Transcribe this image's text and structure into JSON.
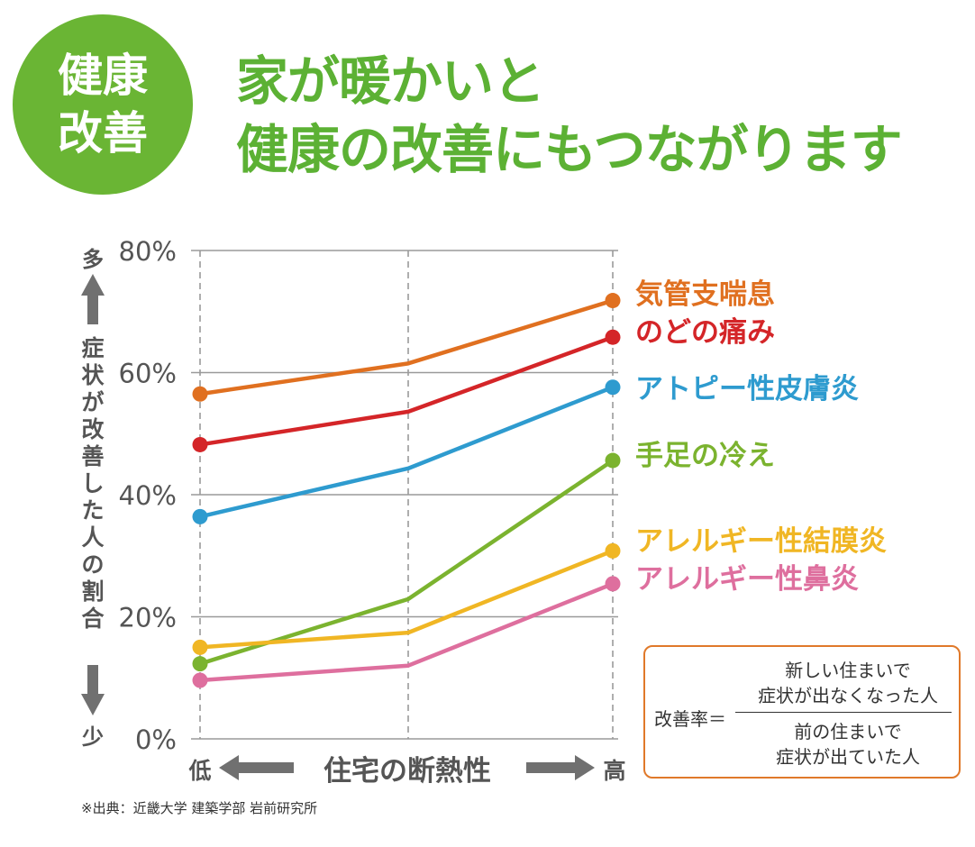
{
  "badge": {
    "line1": "健康",
    "line2": "改善"
  },
  "headline": {
    "line1": "家が暖かいと",
    "line2": "健康の改善にもつながります"
  },
  "colors": {
    "green": "#5cb134",
    "orange_border": "#e0792a",
    "grid": "#9a9a9a",
    "arrow": "#707070"
  },
  "chart_data": {
    "type": "line",
    "x": [
      "低",
      "",
      "高"
    ],
    "xlabel": "住宅の断熱性",
    "ylabel": "症状が改善した人の割合",
    "ylabel_top": "多",
    "ylabel_bottom": "少",
    "ylim": [
      0,
      80
    ],
    "yticks": [
      "0%",
      "20%",
      "40%",
      "60%",
      "80%"
    ],
    "grid": true,
    "series": [
      {
        "name": "気管支喘息",
        "color": "#e07020",
        "values": [
          56.5,
          61.5,
          71.8
        ]
      },
      {
        "name": "のどの痛み",
        "color": "#d42528",
        "values": [
          48.2,
          53.6,
          65.8
        ]
      },
      {
        "name": "アトピー性皮膚炎",
        "color": "#2e9bcf",
        "values": [
          36.4,
          44.3,
          57.6
        ]
      },
      {
        "name": "手足の冷え",
        "color": "#7bb32f",
        "values": [
          12.3,
          22.9,
          45.6
        ]
      },
      {
        "name": "アレルギー性結膜炎",
        "color": "#f0b624",
        "values": [
          15.0,
          17.4,
          30.8
        ]
      },
      {
        "name": "アレルギー性鼻炎",
        "color": "#de6f9e",
        "values": [
          9.6,
          12.0,
          25.4
        ]
      }
    ]
  },
  "formula": {
    "label": "改善率＝",
    "numerator_line1": "新しい住まいで",
    "numerator_line2": "症状が出なくなった人",
    "denominator_line1": "前の住まいで",
    "denominator_line2": "症状が出ていた人"
  },
  "source": "※出典：近畿大学 建築学部 岩前研究所"
}
